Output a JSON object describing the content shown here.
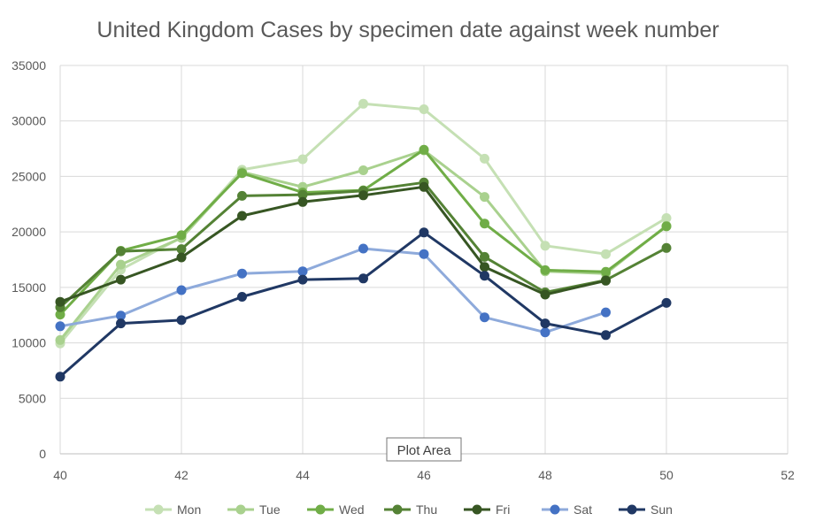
{
  "chart_data": {
    "type": "line",
    "title": "United Kingdom Cases by specimen date against week number",
    "xlabel": "",
    "ylabel": "",
    "xlim": [
      40,
      52
    ],
    "ylim": [
      0,
      35000
    ],
    "x_ticks": [
      "40",
      "42",
      "44",
      "46",
      "48",
      "50",
      "52"
    ],
    "y_ticks": [
      "0",
      "5000",
      "10000",
      "15000",
      "20000",
      "25000",
      "30000",
      "35000"
    ],
    "grid": true,
    "legend_position": "bottom",
    "markers": true,
    "series": [
      {
        "name": "Mon",
        "color": "#c5e0b4",
        "points": [
          [
            40,
            9950
          ],
          [
            41,
            16600
          ],
          [
            42,
            19500
          ],
          [
            43,
            25600
          ],
          [
            44,
            26550
          ],
          [
            45,
            31550
          ],
          [
            46,
            31050
          ],
          [
            47,
            26600
          ],
          [
            48,
            18750
          ],
          [
            49,
            18000
          ],
          [
            50,
            21250
          ]
        ]
      },
      {
        "name": "Tue",
        "color": "#a9d18e",
        "points": [
          [
            40,
            10250
          ],
          [
            41,
            17050
          ],
          [
            42,
            19450
          ],
          [
            43,
            25400
          ],
          [
            44,
            24050
          ],
          [
            45,
            25550
          ],
          [
            46,
            27350
          ],
          [
            47,
            23150
          ],
          [
            48,
            16450
          ],
          [
            49,
            16250
          ],
          [
            50,
            20550
          ]
        ]
      },
      {
        "name": "Wed",
        "color": "#70ad47",
        "points": [
          [
            40,
            12550
          ],
          [
            41,
            18300
          ],
          [
            42,
            19700
          ],
          [
            43,
            25300
          ],
          [
            44,
            23550
          ],
          [
            45,
            23750
          ],
          [
            46,
            27400
          ],
          [
            47,
            20750
          ],
          [
            48,
            16550
          ],
          [
            49,
            16400
          ],
          [
            50,
            20500
          ]
        ]
      },
      {
        "name": "Thu",
        "color": "#548235",
        "points": [
          [
            40,
            13200
          ],
          [
            41,
            18250
          ],
          [
            42,
            18450
          ],
          [
            43,
            23250
          ],
          [
            44,
            23350
          ],
          [
            45,
            23700
          ],
          [
            46,
            24450
          ],
          [
            47,
            17750
          ],
          [
            48,
            14550
          ],
          [
            49,
            15650
          ],
          [
            50,
            18550
          ]
        ]
      },
      {
        "name": "Fri",
        "color": "#375623",
        "points": [
          [
            40,
            13700
          ],
          [
            41,
            15700
          ],
          [
            42,
            17700
          ],
          [
            43,
            21450
          ],
          [
            44,
            22700
          ],
          [
            45,
            23300
          ],
          [
            46,
            24050
          ],
          [
            47,
            16850
          ],
          [
            48,
            14350
          ],
          [
            49,
            15600
          ]
        ]
      },
      {
        "name": "Sat",
        "color": "#8eaadb",
        "points": [
          [
            40,
            11500
          ],
          [
            41,
            12450
          ],
          [
            42,
            14750
          ],
          [
            43,
            16250
          ],
          [
            44,
            16450
          ],
          [
            45,
            18500
          ],
          [
            46,
            18000
          ],
          [
            47,
            12300
          ],
          [
            48,
            10950
          ],
          [
            49,
            12750
          ]
        ]
      },
      {
        "name": "Sun",
        "color": "#203864",
        "points": [
          [
            40,
            6950
          ],
          [
            41,
            11750
          ],
          [
            42,
            12050
          ],
          [
            43,
            14150
          ],
          [
            44,
            15700
          ],
          [
            45,
            15800
          ],
          [
            46,
            19950
          ],
          [
            47,
            16050
          ],
          [
            48,
            11750
          ],
          [
            49,
            10700
          ],
          [
            50,
            13600
          ]
        ]
      }
    ],
    "marker_overrides": {
      "Sat": "#4472c4"
    }
  },
  "tooltip": {
    "label": "Plot Area"
  }
}
